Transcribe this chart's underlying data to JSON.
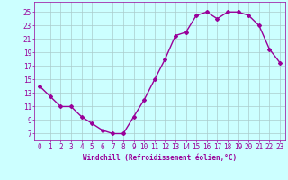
{
  "x": [
    0,
    1,
    2,
    3,
    4,
    5,
    6,
    7,
    8,
    9,
    10,
    11,
    12,
    13,
    14,
    15,
    16,
    17,
    18,
    19,
    20,
    21,
    22,
    23
  ],
  "y": [
    14.0,
    12.5,
    11.0,
    11.0,
    9.5,
    8.5,
    7.5,
    7.0,
    7.0,
    9.5,
    12.0,
    15.0,
    18.0,
    21.5,
    22.0,
    24.5,
    25.0,
    24.0,
    25.0,
    25.0,
    24.5,
    23.0,
    19.5,
    17.5
  ],
  "line_color": "#990099",
  "marker": "D",
  "marker_size": 2,
  "bg_color": "#ccffff",
  "grid_color": "#aacccc",
  "xlabel": "Windchill (Refroidissement éolien,°C)",
  "xlabel_fontsize": 5.5,
  "xtick_labels": [
    "0",
    "1",
    "2",
    "3",
    "4",
    "5",
    "6",
    "7",
    "8",
    "9",
    "10",
    "11",
    "12",
    "13",
    "14",
    "15",
    "16",
    "17",
    "18",
    "19",
    "20",
    "21",
    "22",
    "23"
  ],
  "ytick_vals": [
    7,
    9,
    11,
    13,
    15,
    17,
    19,
    21,
    23,
    25
  ],
  "ylim": [
    6,
    26.5
  ],
  "xlim": [
    -0.5,
    23.5
  ],
  "tick_color": "#990099",
  "tick_fontsize": 5.5,
  "linewidth": 1.0
}
